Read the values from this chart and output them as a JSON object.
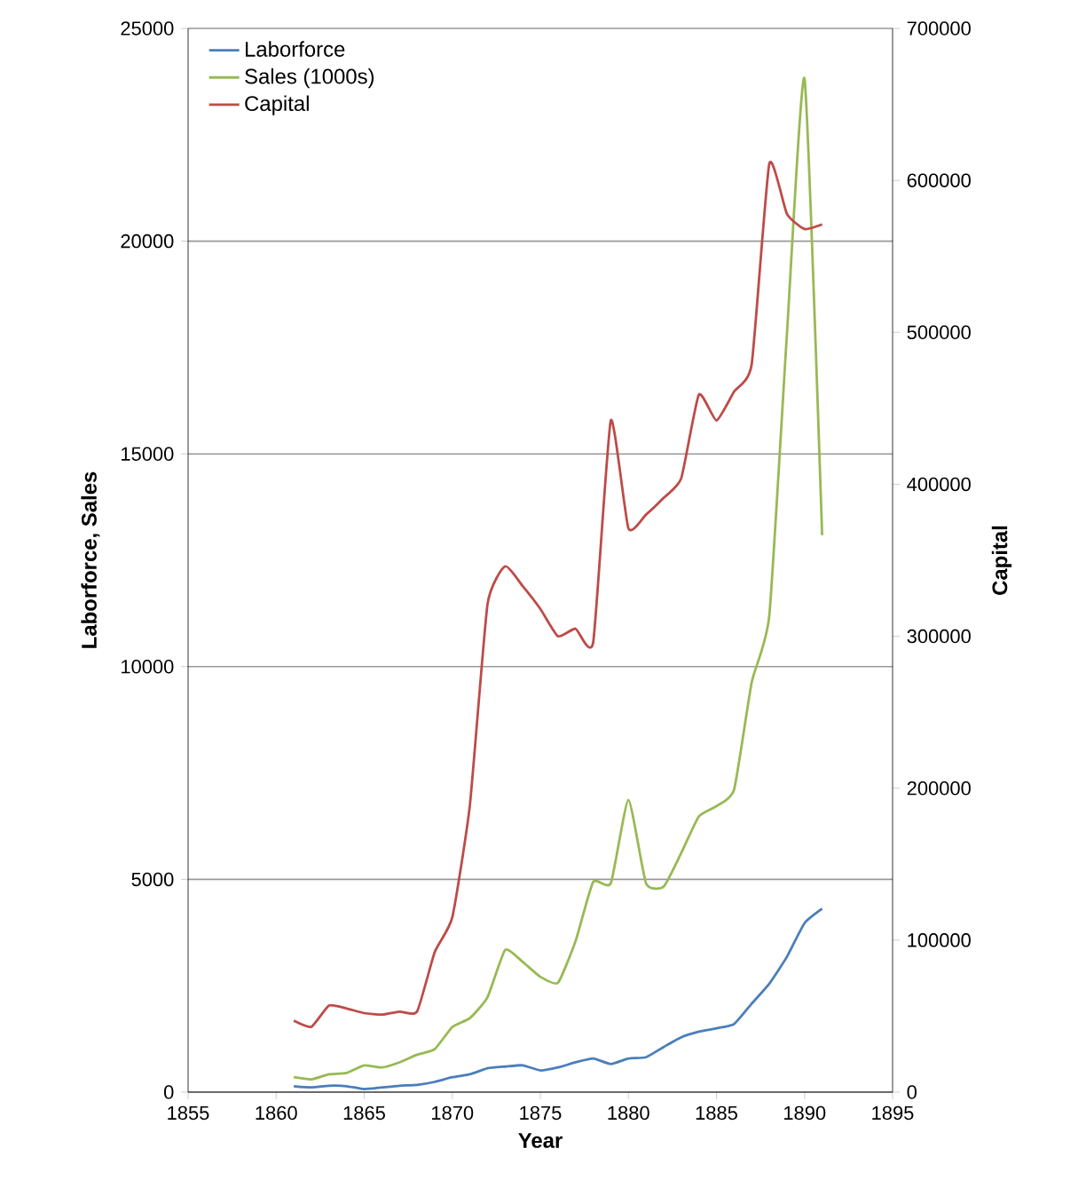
{
  "chart_data": {
    "type": "line",
    "xlabel": "Year",
    "ylabel": "Laborforce,  Sales",
    "y2label": "Capital",
    "x": [
      1861,
      1862,
      1863,
      1864,
      1865,
      1866,
      1867,
      1868,
      1869,
      1870,
      1871,
      1872,
      1873,
      1874,
      1875,
      1876,
      1877,
      1878,
      1879,
      1880,
      1881,
      1882,
      1883,
      1884,
      1885,
      1886,
      1887,
      1888,
      1889,
      1890,
      1891
    ],
    "series": [
      {
        "name": "Laborforce",
        "color": "#4a7ebb",
        "values": [
          140,
          110,
          150,
          140,
          70,
          110,
          150,
          170,
          240,
          350,
          420,
          560,
          600,
          630,
          510,
          580,
          700,
          790,
          660,
          790,
          820,
          1060,
          1290,
          1420,
          1500,
          1600,
          2080,
          2550,
          3180,
          3970,
          4310
        ]
      },
      {
        "name": "Sales (1000s)",
        "color": "#98b954",
        "values": [
          350,
          300,
          420,
          450,
          630,
          580,
          700,
          880,
          1010,
          1530,
          1740,
          2230,
          3340,
          3060,
          2710,
          2570,
          3550,
          4940,
          4910,
          6870,
          4910,
          4830,
          5620,
          6480,
          6720,
          7110,
          9630,
          11200,
          17810,
          23820,
          13090
        ]
      },
      {
        "name": "Capital",
        "color": "#be4b48",
        "axis": "y2",
        "values": [
          47000,
          43000,
          57000,
          55000,
          52000,
          51000,
          53000,
          53000,
          92000,
          115000,
          189000,
          321000,
          346000,
          333000,
          318000,
          300000,
          305000,
          296000,
          442000,
          371000,
          380000,
          391000,
          404000,
          459000,
          442000,
          461000,
          479000,
          611000,
          578000,
          568000,
          571000
        ]
      }
    ],
    "xlim": [
      1855,
      1895
    ],
    "xticks": [
      1855,
      1860,
      1865,
      1870,
      1875,
      1880,
      1885,
      1890,
      1895
    ],
    "ylim": [
      0,
      25000
    ],
    "yticks": [
      0,
      5000,
      10000,
      15000,
      20000,
      25000
    ],
    "y2lim": [
      0,
      700000
    ],
    "y2ticks": [
      0,
      100000,
      200000,
      300000,
      400000,
      500000,
      600000,
      700000
    ],
    "grid": "y",
    "legend": "top left"
  }
}
